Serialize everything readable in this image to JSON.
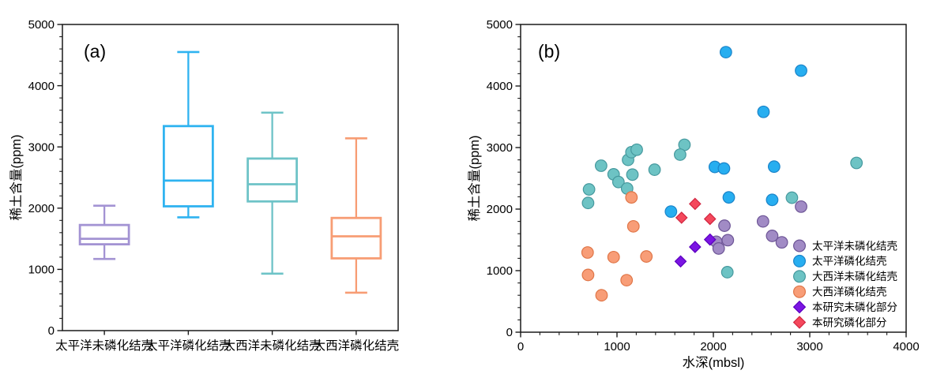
{
  "figure": {
    "background": "#ffffff",
    "panel_a_label": "(a)",
    "panel_b_label": "(b)"
  },
  "chart_data": [
    {
      "type": "box",
      "panel": "a",
      "title": "",
      "ylabel": "稀土含量(ppm)",
      "xlabel": "",
      "ylim": [
        0,
        5000
      ],
      "yticks": [
        0,
        1000,
        2000,
        3000,
        4000,
        5000
      ],
      "y_minor_step": 200,
      "grid": false,
      "categories": [
        "太平洋未磷化结壳",
        "太平洋磷化结壳",
        "大西洋未磷化结壳",
        "大西洋磷化结壳"
      ],
      "boxes": [
        {
          "name": "太平洋未磷化结壳",
          "color": "#a393d3",
          "whisker_low": 1170,
          "q1": 1410,
          "median": 1500,
          "q3": 1725,
          "whisker_high": 2040
        },
        {
          "name": "太平洋磷化结壳",
          "color": "#2fb3f0",
          "whisker_low": 1850,
          "q1": 2030,
          "median": 2450,
          "q3": 3340,
          "whisker_high": 4550
        },
        {
          "name": "大西洋未磷化结壳",
          "color": "#6ec3c7",
          "whisker_low": 930,
          "q1": 2110,
          "median": 2390,
          "q3": 2810,
          "whisker_high": 3560
        },
        {
          "name": "大西洋磷化结壳",
          "color": "#f79d74",
          "whisker_low": 620,
          "q1": 1180,
          "median": 1540,
          "q3": 1840,
          "whisker_high": 3140
        }
      ]
    },
    {
      "type": "scatter",
      "panel": "b",
      "title": "",
      "xlabel": "水深(mbsl)",
      "ylabel": "稀土含量(ppm)",
      "xlim": [
        0,
        4000
      ],
      "ylim": [
        0,
        5000
      ],
      "xticks": [
        0,
        1000,
        2000,
        3000,
        4000
      ],
      "yticks": [
        0,
        1000,
        2000,
        3000,
        4000,
        5000
      ],
      "x_minor_step": 200,
      "y_minor_step": 200,
      "grid": false,
      "legend_position": "inside lower right",
      "series": [
        {
          "name": "太平洋未磷化结壳",
          "marker": "circle",
          "fill": "#a18bc5",
          "stroke": "#6d5596",
          "points": [
            [
              2115,
              1730
            ],
            [
              2030,
              1470
            ],
            [
              2150,
              1495
            ],
            [
              2055,
              1360
            ],
            [
              2515,
              1800
            ],
            [
              2610,
              1565
            ],
            [
              2710,
              1460
            ],
            [
              2910,
              2040
            ]
          ]
        },
        {
          "name": "太平洋磷化结壳",
          "marker": "circle",
          "fill": "#27aef0",
          "stroke": "#1b84c9",
          "points": [
            [
              2130,
              4550
            ],
            [
              2910,
              4250
            ],
            [
              2520,
              3580
            ],
            [
              2015,
              2685
            ],
            [
              2110,
              2660
            ],
            [
              2630,
              2690
            ],
            [
              2160,
              2190
            ],
            [
              2610,
              2150
            ],
            [
              1560,
              1960
            ]
          ]
        },
        {
          "name": "大西洋未磷化结壳",
          "marker": "circle",
          "fill": "#6dc3c4",
          "stroke": "#46999e",
          "points": [
            [
              835,
              2705
            ],
            [
              965,
              2565
            ],
            [
              1015,
              2440
            ],
            [
              1105,
              2335
            ],
            [
              710,
              2320
            ],
            [
              700,
              2100
            ],
            [
              1115,
              2800
            ],
            [
              1150,
              2925
            ],
            [
              1205,
              2965
            ],
            [
              1160,
              2560
            ],
            [
              1700,
              3045
            ],
            [
              1655,
              2885
            ],
            [
              1390,
              2640
            ],
            [
              2145,
              975
            ],
            [
              2815,
              2185
            ],
            [
              3485,
              2750
            ]
          ]
        },
        {
          "name": "大西洋磷化结壳",
          "marker": "circle",
          "fill": "#f89d77",
          "stroke": "#e07648",
          "points": [
            [
              1150,
              2190
            ],
            [
              1170,
              1720
            ],
            [
              695,
              1295
            ],
            [
              965,
              1220
            ],
            [
              700,
              930
            ],
            [
              1100,
              845
            ],
            [
              840,
              600
            ],
            [
              1305,
              1230
            ]
          ]
        },
        {
          "name": "本研究未磷化部分",
          "marker": "diamond",
          "fill": "#7b15e3",
          "stroke": "#5c00c0",
          "points": [
            [
              1660,
              1150
            ],
            [
              1810,
              1385
            ],
            [
              1965,
              1505
            ]
          ]
        },
        {
          "name": "本研究磷化部分",
          "marker": "diamond",
          "fill": "#f4485c",
          "stroke": "#d12641",
          "points": [
            [
              1670,
              1860
            ],
            [
              1810,
              2085
            ],
            [
              1965,
              1840
            ]
          ]
        }
      ]
    }
  ]
}
